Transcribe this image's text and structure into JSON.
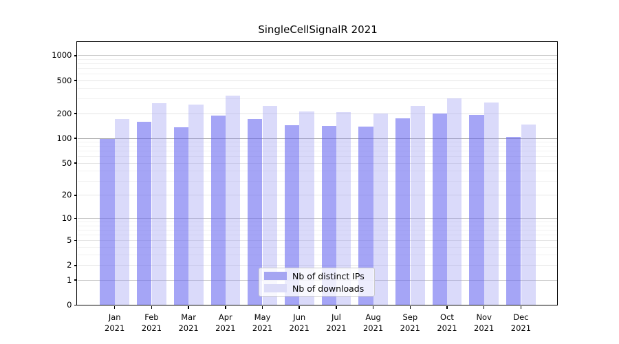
{
  "title": "SingleCellSignalR 2021",
  "year_label": "2021",
  "colors": {
    "ips_bar_fill": "rgba(100,100,240,0.58)",
    "downloads_bar_fill": "rgba(150,150,240,0.35)",
    "ips_swatch": "#a5a5f2",
    "downloads_swatch": "#dcdcf8",
    "grid_major_decade": "#c8c8c8",
    "grid_100_line": "#a8a8a8",
    "grid_labeled": "#e4e4e4",
    "grid_minor": "#f1f1f1",
    "spine": "#000000"
  },
  "legend": {
    "items": [
      {
        "label": "Nb of distinct IPs",
        "swatch": "#a5a5f2"
      },
      {
        "label": "Nb of downloads",
        "swatch": "#dcdcf8"
      }
    ]
  },
  "chart_data": {
    "type": "bar",
    "title": "SingleCellSignalR 2021",
    "categories": [
      "Jan 2021",
      "Feb 2021",
      "Mar 2021",
      "Apr 2021",
      "May 2021",
      "Jun 2021",
      "Jul 2021",
      "Aug 2021",
      "Sep 2021",
      "Oct 2021",
      "Nov 2021",
      "Dec 2021"
    ],
    "months": [
      "Jan",
      "Feb",
      "Mar",
      "Apr",
      "May",
      "Jun",
      "Jul",
      "Aug",
      "Sep",
      "Oct",
      "Nov",
      "Dec"
    ],
    "series": [
      {
        "name": "Nb of distinct IPs",
        "values": [
          98,
          158,
          137,
          190,
          172,
          145,
          143,
          140,
          174,
          200,
          192,
          105
        ]
      },
      {
        "name": "Nb of downloads",
        "values": [
          172,
          268,
          255,
          330,
          248,
          212,
          209,
          200,
          250,
          305,
          275,
          148
        ]
      }
    ],
    "xlabel": "",
    "ylabel": "",
    "yscale": "log1p",
    "ylim": [
      0,
      1434
    ],
    "yticks": [
      0,
      1,
      2,
      5,
      10,
      20,
      50,
      100,
      200,
      500,
      1000
    ],
    "ytick_labels": [
      "0",
      "1",
      "2",
      "5",
      "10",
      "20",
      "50",
      "100",
      "200",
      "500",
      "1000"
    ],
    "grid": "both",
    "legend_position": "lower center"
  }
}
